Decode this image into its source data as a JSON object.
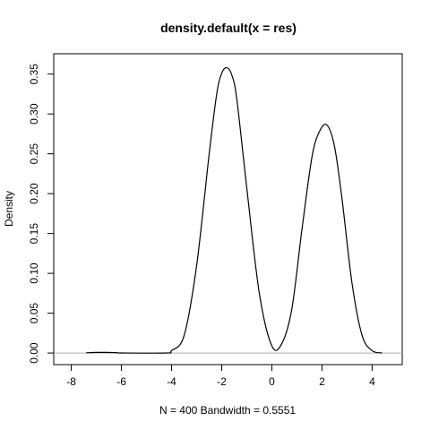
{
  "chart_data": {
    "type": "line",
    "title": "density.default(x = res)",
    "xlabel": "N = 400   Bandwidth = 0.5551",
    "ylabel": "Density",
    "xlim": [
      -8.7,
      5.2
    ],
    "ylim": [
      -0.0145,
      0.3755
    ],
    "x_ticks": [
      -8,
      -6,
      -4,
      -2,
      0,
      2,
      4
    ],
    "x_tick_labels": [
      "-8",
      "-6",
      "-4",
      "-2",
      "0",
      "2",
      "4"
    ],
    "y_ticks": [
      0.0,
      0.05,
      0.1,
      0.15,
      0.2,
      0.25,
      0.3,
      0.35
    ],
    "y_tick_labels": [
      "0.00",
      "0.05",
      "0.10",
      "0.15",
      "0.20",
      "0.25",
      "0.30",
      "0.35"
    ],
    "grid": false,
    "legend": "none",
    "baseline": {
      "y": 0,
      "color": "#b3b3b3"
    },
    "series": [
      {
        "color": "#000000",
        "x": [
          -7.4,
          -7.0,
          -6.6,
          -6.2,
          -6.0,
          -4.2,
          -4.0,
          -3.5,
          -3.0,
          -2.5,
          -2.2,
          -2.0,
          -1.8,
          -1.6,
          -1.4,
          -1.0,
          -0.5,
          0.0,
          0.4,
          0.8,
          1.2,
          1.6,
          1.9,
          2.2,
          2.5,
          2.8,
          3.2,
          3.6,
          4.0,
          4.4
        ],
        "y": [
          0.0004,
          0.0008,
          0.0008,
          0.0005,
          0.0001,
          0.0001,
          0.003,
          0.022,
          0.11,
          0.25,
          0.325,
          0.351,
          0.358,
          0.349,
          0.319,
          0.207,
          0.075,
          0.009,
          0.012,
          0.056,
          0.155,
          0.246,
          0.278,
          0.286,
          0.259,
          0.193,
          0.087,
          0.022,
          0.003,
          0.0002
        ]
      }
    ]
  }
}
